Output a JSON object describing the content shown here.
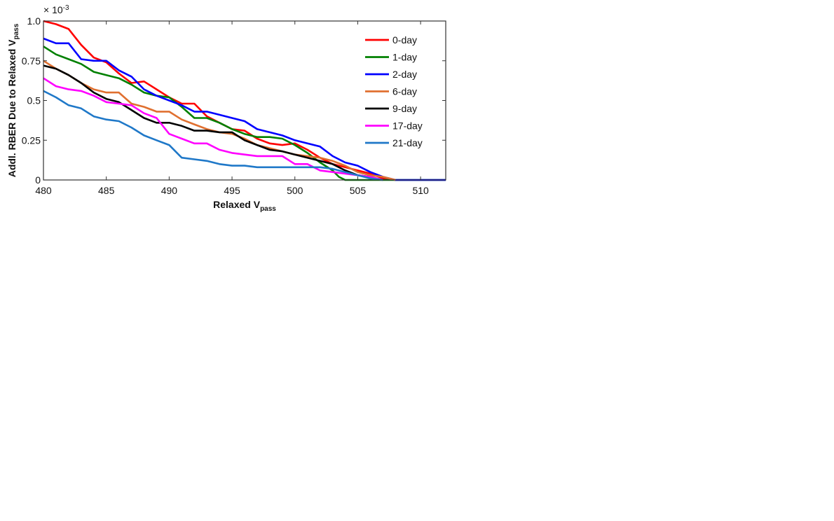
{
  "chart_data": {
    "type": "line",
    "multiplier_text": "× 10",
    "multiplier_exp": "-3",
    "xlabel_main": "Relaxed V",
    "xlabel_sub": "pass",
    "ylabel_main": "Addl. RBER Due to Relaxed V",
    "ylabel_sub": "pass",
    "xlim": [
      480,
      512
    ],
    "ylim": [
      0,
      1.0
    ],
    "xticks": [
      480,
      485,
      490,
      495,
      500,
      505,
      510
    ],
    "yticks": [
      0,
      0.25,
      0.5,
      0.75,
      1.0
    ],
    "ytick_labels": [
      "0",
      "0.25",
      "0.5",
      "0.75",
      "1.0"
    ],
    "grid": false,
    "legend_position": "top-right",
    "series": [
      {
        "name": "0-day",
        "color": "#ff0000",
        "x": [
          480,
          481,
          482,
          483,
          484,
          485,
          486,
          487,
          488,
          489,
          490,
          491,
          492,
          493,
          494,
          495,
          496,
          497,
          498,
          499,
          500,
          501,
          502,
          503,
          504,
          505,
          506,
          507,
          508
        ],
        "y": [
          1.0,
          0.98,
          0.95,
          0.85,
          0.77,
          0.74,
          0.67,
          0.61,
          0.62,
          0.57,
          0.52,
          0.48,
          0.48,
          0.4,
          0.36,
          0.32,
          0.31,
          0.26,
          0.23,
          0.22,
          0.23,
          0.19,
          0.14,
          0.1,
          0.08,
          0.06,
          0.04,
          0.01,
          0
        ]
      },
      {
        "name": "1-day",
        "color": "#008000",
        "x": [
          480,
          481,
          482,
          483,
          484,
          485,
          486,
          487,
          488,
          489,
          490,
          491,
          492,
          493,
          494,
          495,
          496,
          497,
          498,
          499,
          500,
          501,
          502,
          503,
          503.5,
          504,
          505,
          508,
          512
        ],
        "y": [
          0.84,
          0.79,
          0.76,
          0.73,
          0.68,
          0.66,
          0.64,
          0.6,
          0.55,
          0.53,
          0.52,
          0.46,
          0.39,
          0.39,
          0.36,
          0.32,
          0.29,
          0.27,
          0.27,
          0.26,
          0.22,
          0.17,
          0.11,
          0.06,
          0.02,
          0,
          0,
          0,
          0
        ]
      },
      {
        "name": "2-day",
        "color": "#0000ff",
        "x": [
          480,
          481,
          482,
          483,
          484,
          485,
          486,
          487,
          488,
          489,
          490,
          491,
          492,
          493,
          494,
          495,
          496,
          497,
          498,
          499,
          500,
          501,
          502,
          503,
          504,
          505,
          506,
          507,
          508,
          512
        ],
        "y": [
          0.89,
          0.86,
          0.86,
          0.76,
          0.75,
          0.75,
          0.69,
          0.65,
          0.57,
          0.53,
          0.5,
          0.47,
          0.43,
          0.43,
          0.41,
          0.39,
          0.37,
          0.32,
          0.3,
          0.28,
          0.25,
          0.23,
          0.21,
          0.15,
          0.11,
          0.09,
          0.05,
          0.02,
          0,
          0
        ]
      },
      {
        "name": "6-day",
        "color": "#e07030",
        "x": [
          480,
          481,
          482,
          483,
          484,
          485,
          486,
          487,
          488,
          489,
          490,
          491,
          492,
          493,
          494,
          495,
          496,
          497,
          498,
          499,
          500,
          501,
          502,
          503,
          504,
          505,
          506,
          507,
          508
        ],
        "y": [
          0.75,
          0.7,
          0.66,
          0.61,
          0.57,
          0.55,
          0.55,
          0.48,
          0.46,
          0.43,
          0.43,
          0.38,
          0.35,
          0.32,
          0.3,
          0.29,
          0.26,
          0.22,
          0.2,
          0.18,
          0.16,
          0.15,
          0.14,
          0.12,
          0.09,
          0.05,
          0.03,
          0.02,
          0
        ]
      },
      {
        "name": "9-day",
        "color": "#000000",
        "x": [
          480,
          481,
          482,
          483,
          484,
          485,
          486,
          487,
          488,
          489,
          490,
          491,
          492,
          493,
          494,
          495,
          496,
          497,
          498,
          499,
          500,
          501,
          502,
          503,
          504,
          505,
          506,
          507
        ],
        "y": [
          0.72,
          0.7,
          0.66,
          0.61,
          0.55,
          0.51,
          0.49,
          0.44,
          0.39,
          0.36,
          0.36,
          0.34,
          0.31,
          0.31,
          0.3,
          0.3,
          0.25,
          0.22,
          0.19,
          0.18,
          0.16,
          0.14,
          0.12,
          0.1,
          0.06,
          0.03,
          0.02,
          0
        ]
      },
      {
        "name": "17-day",
        "color": "#ff00ff",
        "x": [
          480,
          481,
          482,
          483,
          484,
          485,
          486,
          487,
          488,
          489,
          490,
          491,
          492,
          493,
          494,
          495,
          496,
          497,
          498,
          499,
          500,
          501,
          502,
          503,
          504,
          505,
          506,
          507
        ],
        "y": [
          0.64,
          0.59,
          0.57,
          0.56,
          0.53,
          0.49,
          0.48,
          0.47,
          0.42,
          0.39,
          0.29,
          0.26,
          0.23,
          0.23,
          0.19,
          0.17,
          0.16,
          0.15,
          0.15,
          0.15,
          0.1,
          0.1,
          0.06,
          0.05,
          0.04,
          0.03,
          0.02,
          0
        ]
      },
      {
        "name": "21-day",
        "color": "#1f78c8",
        "x": [
          480,
          481,
          482,
          483,
          484,
          485,
          486,
          487,
          488,
          489,
          490,
          491,
          492,
          493,
          494,
          495,
          496,
          497,
          498,
          499,
          500,
          501,
          502,
          503,
          504,
          505,
          506,
          507
        ],
        "y": [
          0.56,
          0.52,
          0.47,
          0.45,
          0.4,
          0.38,
          0.37,
          0.33,
          0.28,
          0.25,
          0.22,
          0.14,
          0.13,
          0.12,
          0.1,
          0.09,
          0.09,
          0.08,
          0.08,
          0.08,
          0.08,
          0.08,
          0.08,
          0.07,
          0.05,
          0.03,
          0.01,
          0
        ]
      }
    ]
  }
}
